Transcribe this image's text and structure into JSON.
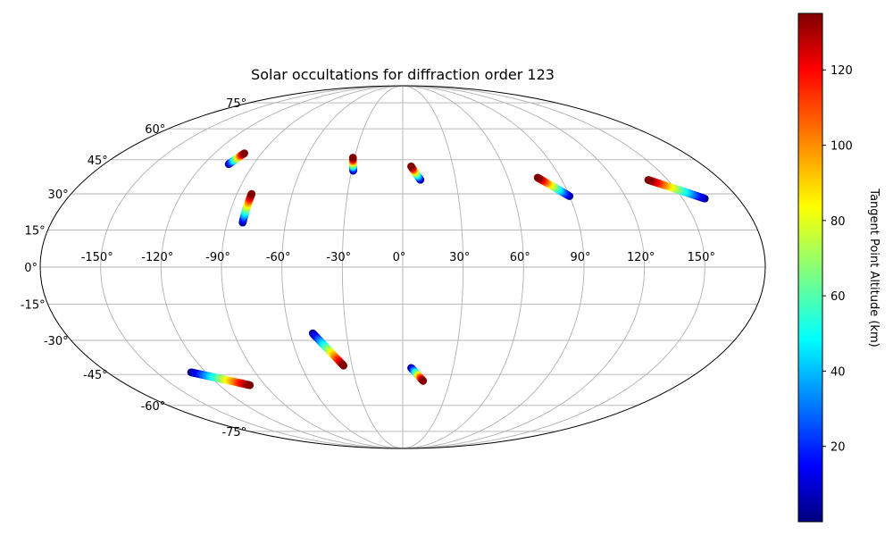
{
  "chart_data": {
    "type": "scatter",
    "projection": "mollweide",
    "title": "Solar occultations for diffraction order 123",
    "lon_ticks": [
      -150,
      -120,
      -90,
      -60,
      -30,
      0,
      30,
      60,
      90,
      120,
      150
    ],
    "lon_tick_labels": [
      "-150°",
      "-120°",
      "-90°",
      "-60°",
      "-30°",
      "0°",
      "30°",
      "60°",
      "90°",
      "120°",
      "150°"
    ],
    "lat_ticks": [
      -75,
      -60,
      -45,
      -30,
      -15,
      0,
      15,
      30,
      45,
      60,
      75
    ],
    "lat_tick_labels": [
      "-75°",
      "-60°",
      "-45°",
      "-30°",
      "-15°",
      "0°",
      "15°",
      "30°",
      "45°",
      "60°",
      "75°"
    ],
    "grid": true,
    "colorbar": {
      "label": "Tangent Point Altitude (km)",
      "range": [
        0,
        135
      ],
      "ticks": [
        20,
        40,
        60,
        80,
        100,
        120
      ],
      "colormap": "jet"
    },
    "series": [
      {
        "lon_start": -105,
        "lat_start": 43,
        "alt_start": 0,
        "lon_end": -101,
        "lat_end": 48,
        "alt_end": 135
      },
      {
        "lon_start": -82,
        "lat_start": 18,
        "alt_start": 0,
        "lon_end": -82,
        "lat_end": 30,
        "alt_end": 135
      },
      {
        "lon_start": -29,
        "lat_start": 40,
        "alt_start": 0,
        "lon_end": -31,
        "lat_end": 46,
        "alt_end": 135
      },
      {
        "lon_start": 10,
        "lat_start": 36,
        "alt_start": 0,
        "lon_end": 5,
        "lat_end": 42,
        "alt_end": 135
      },
      {
        "lon_start": 90,
        "lat_start": 29,
        "alt_start": 0,
        "lon_end": 77,
        "lat_end": 37,
        "alt_end": 135
      },
      {
        "lon_start": 162,
        "lat_start": 28,
        "alt_start": 0,
        "lon_end": 139,
        "lat_end": 36,
        "alt_end": 135
      },
      {
        "lon_start": -48,
        "lat_start": -27,
        "alt_start": 0,
        "lon_end": -35,
        "lat_end": -41,
        "alt_end": 135
      },
      {
        "lon_start": 5,
        "lat_start": -42,
        "alt_start": 0,
        "lon_end": 13,
        "lat_end": -48,
        "alt_end": 135
      },
      {
        "lon_start": -129,
        "lat_start": -44,
        "alt_start": 0,
        "lon_end": -100,
        "lat_end": -50,
        "alt_end": 135
      }
    ]
  }
}
